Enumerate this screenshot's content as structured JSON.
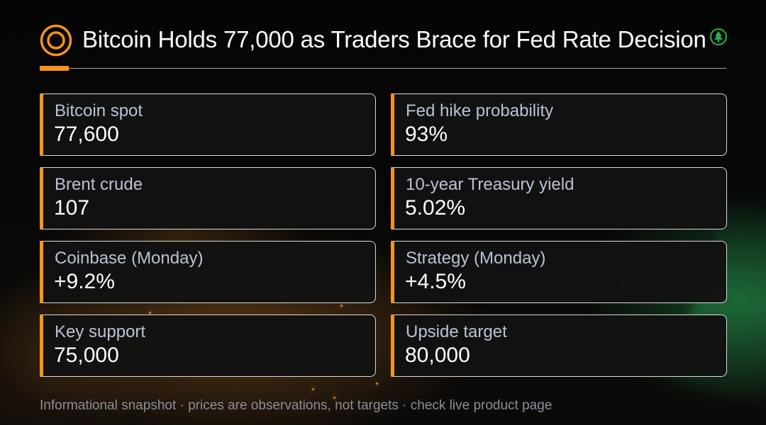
{
  "header": {
    "title": "Bitcoin Holds 77,000 as Traders Brace for Fed Rate Decision",
    "logo_icon": "bitcoin-ring-icon",
    "corner_icon": "green-tree-icon"
  },
  "colors": {
    "accent": "#f7931a",
    "background": "#050505",
    "card_background": "#121212",
    "label": "#b9c3d6",
    "value": "#ffffff",
    "footnote": "#8a8f99"
  },
  "metrics": [
    {
      "label": "Bitcoin spot",
      "value": "77,600"
    },
    {
      "label": "Fed hike probability",
      "value": "93%"
    },
    {
      "label": "Brent crude",
      "value": "107"
    },
    {
      "label": "10-year Treasury yield",
      "value": "5.02%"
    },
    {
      "label": "Coinbase (Monday)",
      "value": "+9.2%"
    },
    {
      "label": "Strategy (Monday)",
      "value": "+4.5%"
    },
    {
      "label": "Key support",
      "value": "75,000"
    },
    {
      "label": "Upside target",
      "value": "80,000"
    }
  ],
  "footer": {
    "note": "Informational snapshot · prices are observations, not targets · check live product page"
  }
}
